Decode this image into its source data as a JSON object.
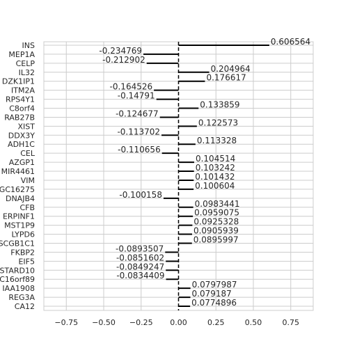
{
  "chart_data": {
    "type": "bar",
    "orientation": "horizontal",
    "xlim": [
      -0.9,
      0.9
    ],
    "x_ticks": [
      -0.75,
      -0.5,
      -0.25,
      0.0,
      0.25,
      0.5,
      0.75
    ],
    "x_tick_labels": [
      "−0.75",
      "−0.50",
      "−0.25",
      "0.00",
      "0.25",
      "0.50",
      "0.75"
    ],
    "grid": true,
    "zero_line": "dashed",
    "categories": [
      "INS",
      "MEP1A",
      "CELP",
      "IL32",
      "DZK1IP1",
      "ITM2A",
      "RPS4Y1",
      "C8orf4",
      "RAB27B",
      "XIST",
      "DDX3Y",
      "ADH1C",
      "CEL",
      "AZGP1",
      "MIR4461",
      "VIM",
      "GC16275",
      "DNAJB4",
      "CFB",
      "ERPINF1",
      "MST1P9",
      "LYPD6",
      "SCGB1C1",
      "FKBP2",
      "EIF5",
      "STARD10",
      "C16orf89",
      "IAA1908",
      "REG3A",
      "CA12"
    ],
    "values": [
      0.606564,
      -0.234769,
      -0.212902,
      0.204964,
      0.176617,
      -0.164526,
      -0.14791,
      0.133859,
      -0.124677,
      0.122573,
      -0.113702,
      0.113328,
      -0.110656,
      0.104514,
      0.103242,
      0.101432,
      0.100604,
      -0.100158,
      0.0983441,
      0.0959075,
      0.0925328,
      0.0905939,
      0.0895997,
      -0.0893507,
      -0.0851602,
      -0.0849247,
      -0.0834409,
      0.0797987,
      0.079187,
      0.0774896
    ],
    "value_labels": [
      "0.606564",
      "-0.234769",
      "-0.212902",
      "0.204964",
      "0.176617",
      "-0.164526",
      "-0.14791",
      "0.133859",
      "-0.124677",
      "0.122573",
      "-0.113702",
      "0.113328",
      "-0.110656",
      "0.104514",
      "0.103242",
      "0.101432",
      "0.100604",
      "-0.100158",
      "0.0983441",
      "0.0959075",
      "0.0925328",
      "0.0905939",
      "0.0895997",
      "-0.0893507",
      "-0.0851602",
      "-0.0849247",
      "-0.0834409",
      "0.0797987",
      "0.079187",
      "0.0774896"
    ],
    "colors": {
      "bar": "#000000",
      "grid": "#cccccc",
      "text": "#262626",
      "background": "#ffffff"
    }
  }
}
